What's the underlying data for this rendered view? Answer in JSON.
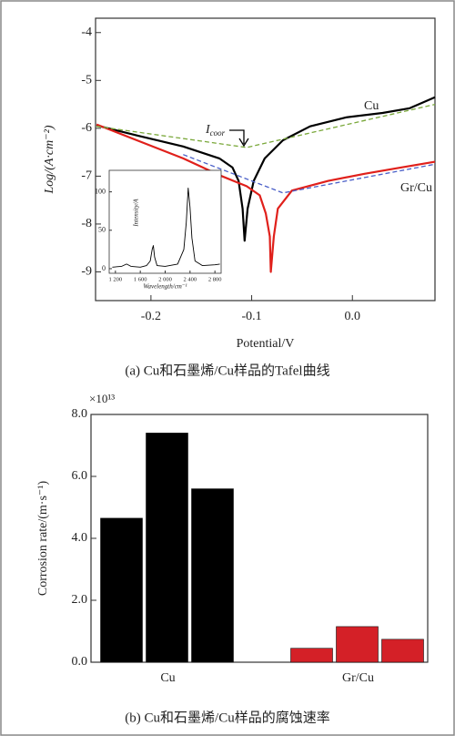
{
  "chart_data": [
    {
      "type": "line",
      "caption": "(a) Cu和石墨烯/Cu样品的Tafel曲线",
      "xlabel": "Potential/V",
      "ylabel": "Log/(A·cm⁻²)",
      "xlim": [
        -0.255,
        0.082
      ],
      "xticks": [
        -0.2,
        -0.1,
        {
          "value": 0,
          "label": "0.0"
        }
      ],
      "ylim": [
        -9.6,
        -3.7
      ],
      "yticks": [
        -9,
        -8,
        -7,
        -6,
        -5,
        -4
      ],
      "annotation": {
        "text": "I",
        "sub": "coor"
      },
      "series": [
        {
          "name": "Cu",
          "color": "#000000",
          "x": [
            -0.254,
            -0.214,
            -0.168,
            -0.132,
            -0.119,
            -0.113,
            -0.109,
            -0.107,
            -0.104,
            -0.098,
            -0.087,
            -0.069,
            -0.042,
            -0.006,
            0.03,
            0.057,
            0.082
          ],
          "values": [
            -5.94,
            -6.15,
            -6.38,
            -6.63,
            -6.82,
            -7.1,
            -7.68,
            -8.35,
            -7.68,
            -7.1,
            -6.63,
            -6.25,
            -5.96,
            -5.77,
            -5.68,
            -5.58,
            -5.35
          ]
        },
        {
          "name": "Gr/Cu",
          "color": "#e0201b",
          "x": [
            -0.254,
            -0.214,
            -0.168,
            -0.132,
            -0.105,
            -0.092,
            -0.086,
            -0.082,
            -0.081,
            -0.078,
            -0.074,
            -0.06,
            -0.024,
            0.012,
            0.048,
            0.082
          ],
          "values": [
            -5.92,
            -6.25,
            -6.63,
            -6.98,
            -7.21,
            -7.4,
            -7.78,
            -8.26,
            -9.0,
            -8.26,
            -7.68,
            -7.3,
            -7.1,
            -6.95,
            -6.82,
            -6.7
          ]
        },
        {
          "color": "#7aa83a",
          "dash": true,
          "x": [
            -0.254,
            -0.105,
            0.082
          ],
          "values": [
            -5.96,
            -6.4,
            -5.5
          ]
        },
        {
          "color": "#4a5fc8",
          "dash": true,
          "x": [
            -0.168,
            -0.069,
            0.082
          ],
          "values": [
            -6.55,
            -7.35,
            -6.75
          ]
        }
      ]
    },
    {
      "type": "line",
      "xlabel": "Wavelength/cm⁻¹",
      "ylabel": "Intensity/A",
      "xlim": [
        1100,
        2900
      ],
      "xticks": [
        {
          "value": 1200,
          "label": "1 200"
        },
        {
          "value": 1600,
          "label": "1 600"
        },
        {
          "value": 2000,
          "label": "2 000"
        },
        {
          "value": 2400,
          "label": "2 400"
        },
        {
          "value": 2800,
          "label": "2 800"
        }
      ],
      "ylim": [
        -6,
        128
      ],
      "yticks": [
        0,
        50,
        100
      ],
      "series": [
        {
          "color": "#000000",
          "x": [
            1150,
            1300,
            1380,
            1450,
            1600,
            1700,
            1760,
            1790,
            1810,
            1830,
            1870,
            2000,
            2200,
            2300,
            2340,
            2370,
            2400,
            2430,
            2480,
            2600,
            2800,
            2880
          ],
          "values": [
            2,
            3,
            6,
            3,
            2,
            4,
            10,
            25,
            30,
            15,
            4,
            3,
            6,
            25,
            60,
            105,
            80,
            40,
            10,
            4,
            5,
            6
          ]
        }
      ]
    },
    {
      "type": "bar",
      "caption": "(b) Cu和石墨烯/Cu样品的腐蚀速率",
      "ylabel": "Corrosion rate/(m·s⁻¹)",
      "y_multiplier": "×10¹³",
      "categories": [
        "Cu",
        "Gr/Cu"
      ],
      "colors": [
        "#000000",
        "#d42027"
      ],
      "ylim": [
        0,
        8.0
      ],
      "yticks": [
        {
          "value": 0,
          "label": "0.0"
        },
        {
          "value": 2,
          "label": "2.0"
        },
        {
          "value": 4,
          "label": "4.0"
        },
        {
          "value": 6,
          "label": "6.0"
        },
        {
          "value": 8,
          "label": "8.0"
        }
      ],
      "series": [
        {
          "values": [
            4.65,
            0.45
          ]
        },
        {
          "values": [
            7.4,
            1.15
          ]
        },
        {
          "values": [
            5.6,
            0.74
          ]
        }
      ]
    }
  ]
}
